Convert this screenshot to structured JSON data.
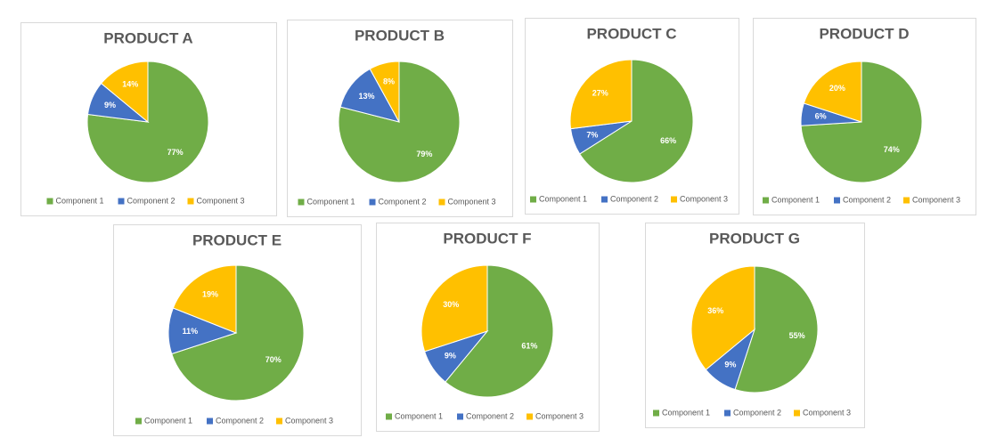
{
  "chart_data": [
    {
      "type": "pie",
      "title": "PRODUCT A",
      "categories": [
        "Component 1",
        "Component 2",
        "Component 3"
      ],
      "values": [
        77,
        9,
        14
      ],
      "value_labels": [
        "77%",
        "9%",
        "14%"
      ],
      "colors": [
        "#70ad47",
        "#4472c4",
        "#ffc000"
      ]
    },
    {
      "type": "pie",
      "title": "PRODUCT B",
      "categories": [
        "Component 1",
        "Component 2",
        "Component 3"
      ],
      "values": [
        79,
        13,
        8
      ],
      "value_labels": [
        "79%",
        "13%",
        "8%"
      ],
      "colors": [
        "#70ad47",
        "#4472c4",
        "#ffc000"
      ]
    },
    {
      "type": "pie",
      "title": "PRODUCT C",
      "categories": [
        "Component 1",
        "Component 2",
        "Component 3"
      ],
      "values": [
        66,
        7,
        27
      ],
      "value_labels": [
        "66%",
        "7%",
        "27%"
      ],
      "colors": [
        "#70ad47",
        "#4472c4",
        "#ffc000"
      ]
    },
    {
      "type": "pie",
      "title": "PRODUCT D",
      "categories": [
        "Component 1",
        "Component 2",
        "Component 3"
      ],
      "values": [
        74,
        6,
        20
      ],
      "value_labels": [
        "74%",
        "6%",
        "20%"
      ],
      "colors": [
        "#70ad47",
        "#4472c4",
        "#ffc000"
      ]
    },
    {
      "type": "pie",
      "title": "PRODUCT E",
      "categories": [
        "Component 1",
        "Component 2",
        "Component 3"
      ],
      "values": [
        70,
        11,
        19
      ],
      "value_labels": [
        "70%",
        "11%",
        "19%"
      ],
      "colors": [
        "#70ad47",
        "#4472c4",
        "#ffc000"
      ]
    },
    {
      "type": "pie",
      "title": "PRODUCT F",
      "categories": [
        "Component 1",
        "Component 2",
        "Component 3"
      ],
      "values": [
        61,
        9,
        30
      ],
      "value_labels": [
        "61%",
        "9%",
        "30%"
      ],
      "colors": [
        "#70ad47",
        "#4472c4",
        "#ffc000"
      ]
    },
    {
      "type": "pie",
      "title": "PRODUCT G",
      "categories": [
        "Component 1",
        "Component 2",
        "Component 3"
      ],
      "values": [
        55,
        9,
        36
      ],
      "value_labels": [
        "55%",
        "9%",
        "36%"
      ],
      "colors": [
        "#70ad47",
        "#4472c4",
        "#ffc000"
      ]
    }
  ]
}
